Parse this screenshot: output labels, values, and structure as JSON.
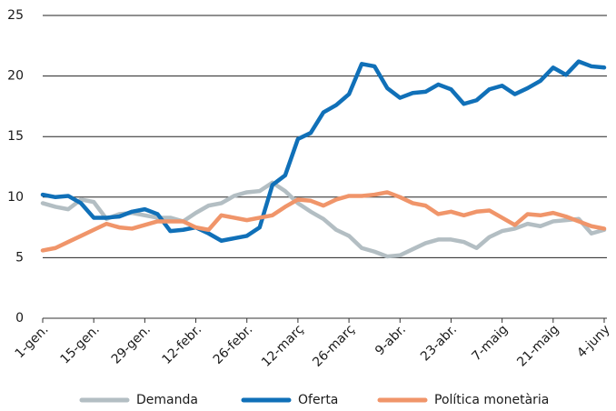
{
  "chart_data": {
    "type": "line",
    "categories": [
      "1-gen.",
      null,
      null,
      null,
      "15-gen.",
      null,
      null,
      null,
      "29-gen.",
      null,
      null,
      null,
      "12-febr.",
      null,
      null,
      null,
      "26-febr.",
      null,
      null,
      null,
      "12-març",
      null,
      null,
      null,
      "26-març",
      null,
      null,
      null,
      "9-abr.",
      null,
      null,
      null,
      "23-abr.",
      null,
      null,
      null,
      "7-maig",
      null,
      null,
      null,
      "21-maig",
      null,
      null,
      null,
      "4-juny"
    ],
    "series": [
      {
        "name": "Demanda",
        "color": "#b3bec3",
        "values": [
          9.5,
          9.2,
          9.0,
          9.8,
          9.6,
          8.2,
          8.6,
          8.7,
          8.5,
          8.3,
          8.3,
          8.0,
          8.7,
          9.3,
          9.5,
          10.1,
          10.4,
          10.5,
          11.2,
          10.5,
          9.5,
          8.8,
          8.2,
          7.3,
          6.8,
          5.8,
          5.5,
          5.1,
          5.2,
          5.7,
          6.2,
          6.5,
          6.5,
          6.3,
          5.8,
          6.7,
          7.2,
          7.4,
          7.8,
          7.6,
          8.0,
          8.1,
          8.2,
          7.0,
          7.3
        ]
      },
      {
        "name": "Oferta",
        "color": "#1070b8",
        "values": [
          10.2,
          10.0,
          10.1,
          9.5,
          8.3,
          8.3,
          8.4,
          8.8,
          9.0,
          8.6,
          7.2,
          7.3,
          7.5,
          7.0,
          6.4,
          6.6,
          6.8,
          7.5,
          11.0,
          11.8,
          14.8,
          15.3,
          17.0,
          17.6,
          18.5,
          21.0,
          20.8,
          19.0,
          18.2,
          18.6,
          18.7,
          19.3,
          18.9,
          17.7,
          18.0,
          18.9,
          19.2,
          18.5,
          19.0,
          19.6,
          20.7,
          20.1,
          21.2,
          20.8,
          20.7
        ]
      },
      {
        "name": "Política monetària",
        "color": "#f0956a",
        "values": [
          5.6,
          5.8,
          6.3,
          6.8,
          7.3,
          7.8,
          7.5,
          7.4,
          7.7,
          8.0,
          8.0,
          8.0,
          7.5,
          7.3,
          8.5,
          8.3,
          8.1,
          8.3,
          8.5,
          9.2,
          9.8,
          9.7,
          9.3,
          9.8,
          10.1,
          10.1,
          10.2,
          10.4,
          10.0,
          9.5,
          9.3,
          8.6,
          8.8,
          8.5,
          8.8,
          8.9,
          8.3,
          7.7,
          8.6,
          8.5,
          8.7,
          8.4,
          8.0,
          7.6,
          7.4
        ]
      }
    ],
    "ylim": [
      0,
      25
    ],
    "yticks": [
      0,
      5,
      10,
      15,
      20,
      25
    ],
    "grid": true
  }
}
